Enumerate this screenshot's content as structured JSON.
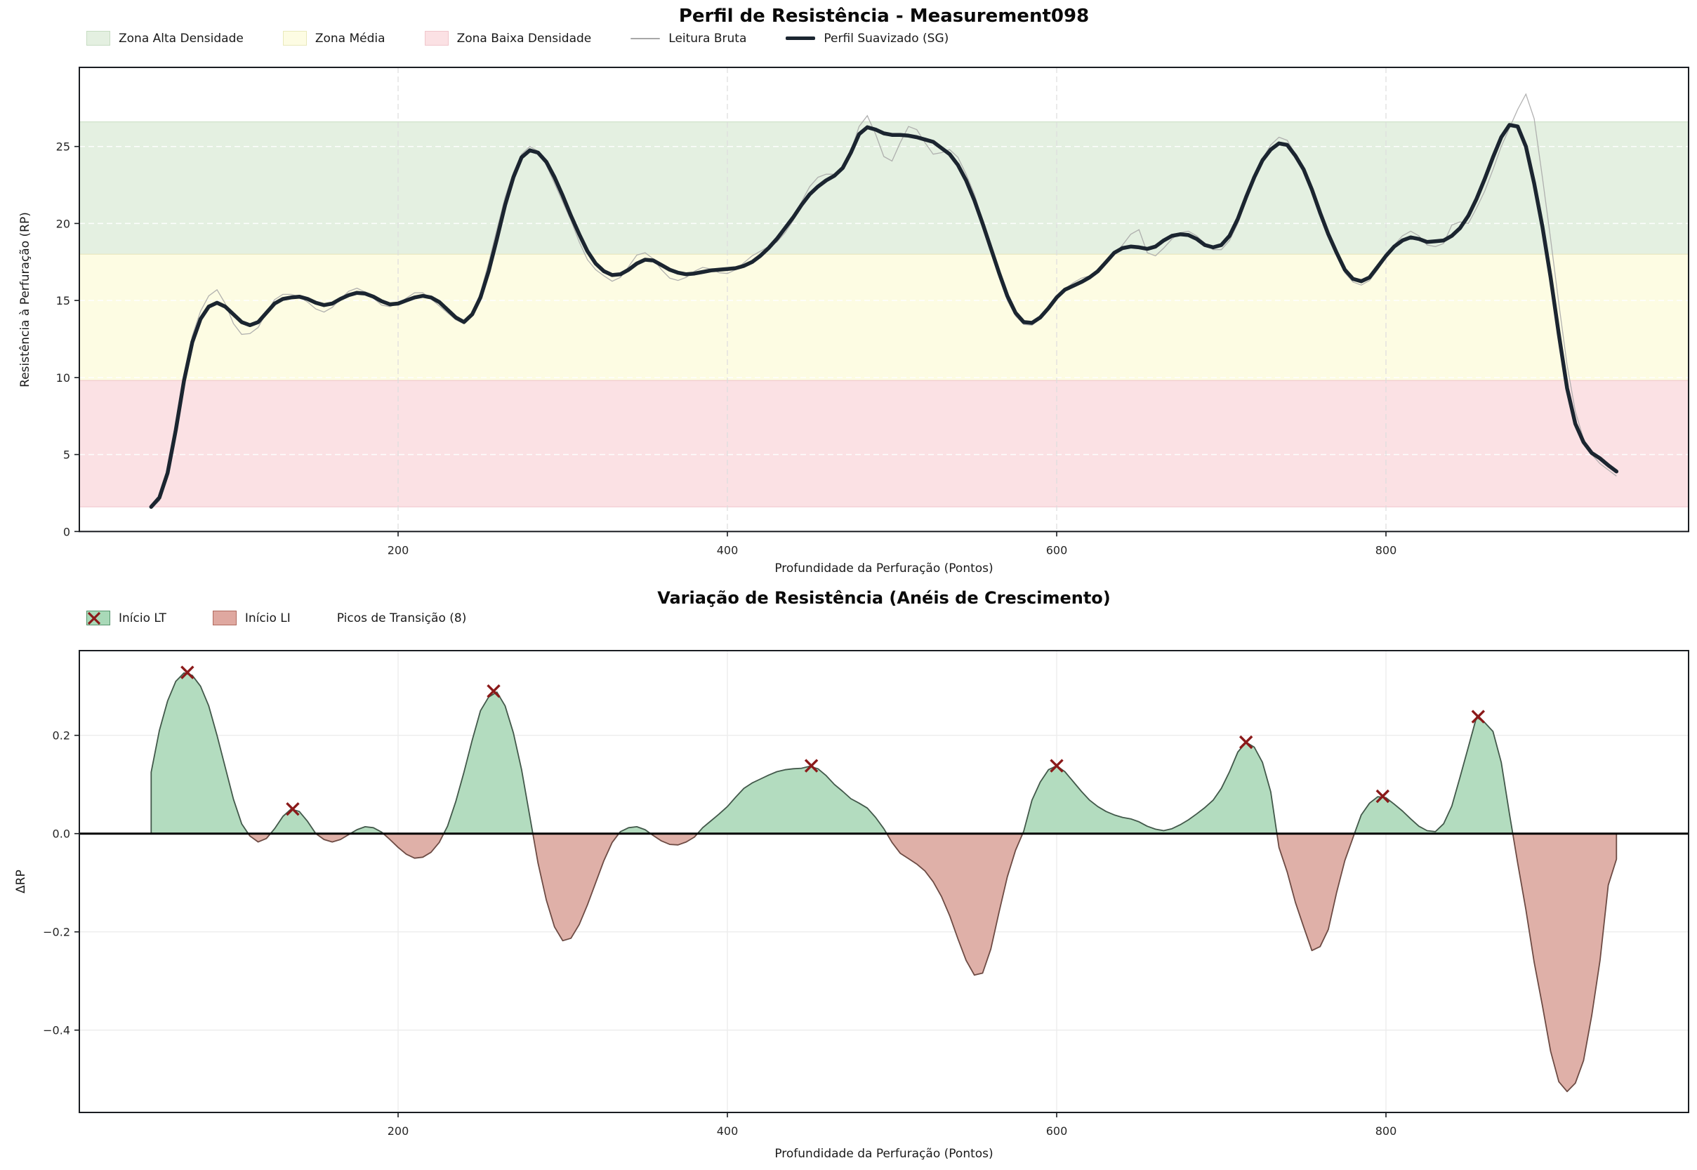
{
  "chart_data": [
    {
      "type": "line",
      "title": "Perfil de Resistência - Measurement098",
      "xlabel": "Profundidade da Perfuração (Pontos)",
      "ylabel": "Resistência à Perfuração (RP)",
      "xlim": [
        6,
        984
      ],
      "ylim": [
        0,
        30.1
      ],
      "xticks": {
        "values": [
          200,
          400,
          600,
          800
        ],
        "labels": [
          "200",
          "400",
          "600",
          "800"
        ]
      },
      "yticks": {
        "values": [
          0,
          5,
          10,
          15,
          20,
          25
        ],
        "labels": [
          "0",
          "5",
          "10",
          "15",
          "20",
          "25"
        ]
      },
      "grid": "dashed",
      "legend_position": "top-left-above-axes",
      "zones": [
        {
          "name": "Zona Alta Densidade",
          "from": 18.0,
          "to": 26.6,
          "fill": "#e4f0e1",
          "edge": "#cfe2ca"
        },
        {
          "name": "Zona Média",
          "from": 9.8,
          "to": 18.0,
          "fill": "#fdfce3",
          "edge": "#ebe9c2"
        },
        {
          "name": "Zona Baixa Densidade",
          "from": 1.6,
          "to": 9.8,
          "fill": "#fbe1e4",
          "edge": "#f2c9cf"
        }
      ],
      "x_start": 50,
      "x_step": 5,
      "series": [
        {
          "name": "Leitura Bruta",
          "color": "#a8a8a8",
          "width": 1.3,
          "values": [
            1.5,
            2.0,
            3.5,
            6.6,
            10.1,
            12.7,
            14.3,
            15.3,
            15.7,
            14.8,
            13.5,
            12.8,
            12.85,
            13.25,
            14.2,
            15.05,
            15.4,
            15.4,
            15.25,
            14.9,
            14.45,
            14.25,
            14.55,
            15.1,
            15.6,
            15.8,
            15.55,
            15.15,
            14.7,
            14.6,
            14.8,
            15.15,
            15.5,
            15.5,
            15.1,
            14.65,
            14.2,
            13.75,
            13.5,
            14.2,
            15.5,
            17.45,
            19.6,
            21.7,
            23.3,
            24.5,
            25.0,
            24.7,
            23.8,
            22.6,
            21.4,
            20.2,
            18.8,
            17.65,
            17.0,
            16.6,
            16.25,
            16.5,
            17.2,
            17.95,
            18.1,
            17.7,
            17.0,
            16.45,
            16.3,
            16.5,
            16.9,
            17.15,
            17.05,
            16.8,
            16.75,
            17.0,
            17.45,
            17.9,
            18.2,
            18.5,
            18.8,
            19.4,
            20.2,
            21.4,
            22.4,
            23.0,
            23.2,
            23.2,
            23.5,
            24.7,
            26.3,
            27.0,
            25.8,
            24.35,
            24.05,
            25.25,
            26.3,
            26.1,
            25.25,
            24.5,
            24.6,
            24.8,
            24.3,
            23.2,
            21.9,
            20.2,
            18.3,
            16.5,
            15.0,
            14.0,
            13.45,
            13.4,
            13.8,
            14.4,
            15.1,
            15.75,
            16.15,
            16.45,
            16.6,
            16.9,
            17.4,
            18.0,
            18.6,
            19.3,
            19.6,
            18.1,
            17.9,
            18.4,
            19.0,
            19.4,
            19.5,
            19.2,
            18.7,
            18.3,
            18.3,
            18.9,
            20.0,
            21.5,
            22.9,
            24.2,
            25.1,
            25.6,
            25.4,
            24.5,
            23.4,
            22.0,
            20.5,
            19.1,
            17.9,
            16.8,
            16.2,
            16.0,
            16.3,
            17.0,
            17.8,
            18.6,
            19.2,
            19.5,
            19.2,
            18.6,
            18.5,
            18.7,
            19.9,
            20.1,
            20.0,
            21.0,
            22.1,
            23.5,
            25.0,
            26.2,
            27.4,
            28.4,
            26.8,
            23.0,
            19.0,
            14.8,
            10.8,
            7.8,
            6.0,
            5.0,
            4.4,
            4.0,
            3.6
          ]
        },
        {
          "name": "Perfil Suavizado (SG)",
          "color": "#1b2530",
          "width": 5.5,
          "values": [
            1.6,
            2.2,
            3.8,
            6.6,
            9.8,
            12.3,
            13.8,
            14.6,
            14.85,
            14.6,
            14.1,
            13.6,
            13.4,
            13.6,
            14.2,
            14.8,
            15.1,
            15.2,
            15.25,
            15.1,
            14.85,
            14.7,
            14.8,
            15.1,
            15.35,
            15.5,
            15.45,
            15.25,
            14.95,
            14.75,
            14.8,
            15.0,
            15.2,
            15.3,
            15.2,
            14.9,
            14.4,
            13.9,
            13.6,
            14.1,
            15.2,
            16.9,
            19.0,
            21.2,
            23.0,
            24.3,
            24.75,
            24.6,
            24.0,
            23.0,
            21.8,
            20.5,
            19.3,
            18.2,
            17.4,
            16.9,
            16.65,
            16.7,
            17.0,
            17.4,
            17.65,
            17.6,
            17.3,
            17.0,
            16.8,
            16.7,
            16.75,
            16.85,
            16.95,
            17.0,
            17.05,
            17.1,
            17.25,
            17.5,
            17.9,
            18.4,
            19.0,
            19.7,
            20.4,
            21.2,
            21.9,
            22.4,
            22.8,
            23.1,
            23.6,
            24.6,
            25.8,
            26.25,
            26.1,
            25.85,
            25.75,
            25.75,
            25.7,
            25.6,
            25.45,
            25.3,
            24.9,
            24.5,
            23.8,
            22.8,
            21.5,
            20.0,
            18.4,
            16.8,
            15.3,
            14.2,
            13.6,
            13.55,
            13.9,
            14.5,
            15.2,
            15.7,
            15.95,
            16.2,
            16.5,
            16.9,
            17.5,
            18.1,
            18.4,
            18.5,
            18.45,
            18.35,
            18.5,
            18.9,
            19.2,
            19.3,
            19.25,
            19.0,
            18.6,
            18.45,
            18.6,
            19.2,
            20.3,
            21.7,
            23.0,
            24.1,
            24.8,
            25.2,
            25.1,
            24.4,
            23.5,
            22.2,
            20.7,
            19.3,
            18.1,
            17.0,
            16.4,
            16.25,
            16.5,
            17.2,
            17.9,
            18.5,
            18.9,
            19.1,
            19.0,
            18.8,
            18.85,
            18.9,
            19.2,
            19.7,
            20.5,
            21.6,
            22.9,
            24.3,
            25.6,
            26.4,
            26.3,
            25.0,
            22.6,
            19.8,
            16.5,
            12.8,
            9.3,
            7.0,
            5.8,
            5.1,
            4.75,
            4.3,
            3.9
          ]
        }
      ],
      "legend": [
        {
          "kind": "patch",
          "label": "Zona Alta Densidade",
          "fill": "#e4f0e1",
          "edge": "#c6dcc2"
        },
        {
          "kind": "patch",
          "label": "Zona Média",
          "fill": "#fdfce3",
          "edge": "#e9e9bb"
        },
        {
          "kind": "patch",
          "label": "Zona Baixa Densidade",
          "fill": "#fbe1e4",
          "edge": "#f0c6cb"
        },
        {
          "kind": "line",
          "label": "Leitura Bruta",
          "stroke": "#a8a8a8",
          "lw": 2
        },
        {
          "kind": "line",
          "label": "Perfil Suavizado (SG)",
          "stroke": "#1b2530",
          "lw": 5
        }
      ]
    },
    {
      "type": "area",
      "title": "Variação de Resistência (Anéis de Crescimento)",
      "xlabel": "Profundidade da Perfuração (Pontos)",
      "ylabel": "ΔRP",
      "xlim": [
        6,
        984
      ],
      "ylim": [
        -0.568,
        0.373
      ],
      "xticks": {
        "values": [
          200,
          400,
          600,
          800
        ],
        "labels": [
          "200",
          "400",
          "600",
          "800"
        ]
      },
      "yticks": {
        "values": [
          0.2,
          0.0,
          -0.2,
          -0.4
        ],
        "labels": [
          "0.2",
          "0.0",
          "−0.2",
          "−0.4"
        ]
      },
      "grid": "light",
      "baseline": 0,
      "zero_line_color": "#000000",
      "fill_positive": "#b3dcbf",
      "fill_negative": "#dfb0a8",
      "edge_positive": "#42584a",
      "edge_negative": "#6d4b44",
      "x_start": 50,
      "x_step": 5,
      "series": [
        {
          "name": "ΔRP",
          "values": [
            0.125,
            0.21,
            0.27,
            0.31,
            0.327,
            0.322,
            0.3,
            0.26,
            0.2,
            0.135,
            0.07,
            0.02,
            -0.005,
            -0.017,
            -0.01,
            0.01,
            0.035,
            0.05,
            0.045,
            0.025,
            0.0,
            -0.012,
            -0.017,
            -0.012,
            -0.002,
            0.008,
            0.014,
            0.012,
            0.003,
            -0.012,
            -0.028,
            -0.042,
            -0.05,
            -0.048,
            -0.038,
            -0.018,
            0.015,
            0.065,
            0.125,
            0.19,
            0.25,
            0.278,
            0.288,
            0.26,
            0.205,
            0.13,
            0.035,
            -0.06,
            -0.135,
            -0.19,
            -0.218,
            -0.213,
            -0.185,
            -0.145,
            -0.1,
            -0.055,
            -0.018,
            0.004,
            0.012,
            0.014,
            0.008,
            -0.004,
            -0.015,
            -0.022,
            -0.023,
            -0.017,
            -0.007,
            0.012,
            0.026,
            0.04,
            0.055,
            0.074,
            0.092,
            0.103,
            0.111,
            0.119,
            0.126,
            0.13,
            0.132,
            0.133,
            0.137,
            0.132,
            0.118,
            0.1,
            0.086,
            0.071,
            0.062,
            0.052,
            0.033,
            0.01,
            -0.018,
            -0.04,
            -0.051,
            -0.062,
            -0.076,
            -0.098,
            -0.128,
            -0.167,
            -0.214,
            -0.258,
            -0.288,
            -0.284,
            -0.235,
            -0.16,
            -0.088,
            -0.034,
            0.005,
            0.068,
            0.105,
            0.13,
            0.138,
            0.126,
            0.106,
            0.086,
            0.068,
            0.055,
            0.045,
            0.038,
            0.033,
            0.03,
            0.024,
            0.015,
            0.009,
            0.006,
            0.01,
            0.018,
            0.028,
            0.04,
            0.053,
            0.068,
            0.092,
            0.126,
            0.166,
            0.186,
            0.176,
            0.145,
            0.085,
            -0.028,
            -0.078,
            -0.14,
            -0.19,
            -0.238,
            -0.23,
            -0.195,
            -0.12,
            -0.055,
            -0.008,
            0.038,
            0.062,
            0.075,
            0.073,
            0.06,
            0.046,
            0.03,
            0.015,
            0.006,
            0.004,
            0.02,
            0.056,
            0.115,
            0.176,
            0.237,
            0.226,
            0.208,
            0.145,
            0.04,
            -0.06,
            -0.155,
            -0.262,
            -0.35,
            -0.443,
            -0.505,
            -0.525,
            -0.508,
            -0.462,
            -0.37,
            -0.258,
            -0.105,
            -0.052
          ]
        }
      ],
      "peaks": {
        "label": "Picos de Transição (8)",
        "count": 8,
        "color": "#8b1a1a",
        "points": [
          [
            72,
            0.328
          ],
          [
            136,
            0.05
          ],
          [
            258,
            0.29
          ],
          [
            451,
            0.138
          ],
          [
            600,
            0.138
          ],
          [
            715,
            0.186
          ],
          [
            798,
            0.076
          ],
          [
            856,
            0.238
          ]
        ]
      },
      "legend": [
        {
          "kind": "patch",
          "label": "Início LT",
          "fill": "#a9d9b8",
          "edge": "#55936c"
        },
        {
          "kind": "patch",
          "label": "Início LI",
          "fill": "#dfa8a0",
          "edge": "#b06a5f"
        },
        {
          "kind": "xmarker",
          "label": "Picos de Transição (8)",
          "stroke": "#8b1a1a"
        }
      ]
    }
  ]
}
